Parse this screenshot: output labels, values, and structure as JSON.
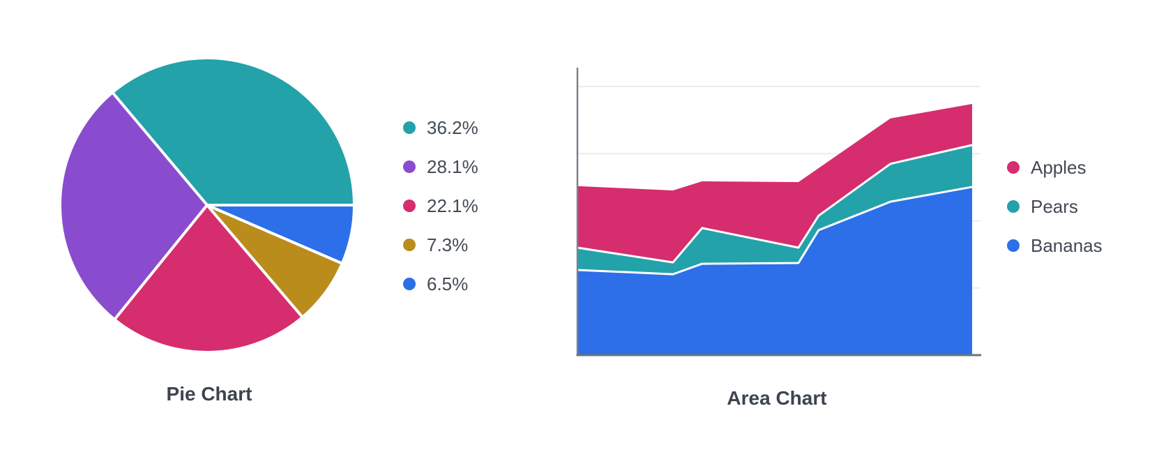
{
  "panel": {
    "background": "#ffffff"
  },
  "chart_data": [
    {
      "type": "pie",
      "title": "Pie Chart",
      "legend_position": "right",
      "start_angle_deg": 0,
      "direction": "counterclockwise",
      "separator_color": "#ffffff",
      "slices": [
        {
          "label": "36.2%",
          "value": 36.2,
          "color": "#23a2aa"
        },
        {
          "label": "28.1%",
          "value": 28.1,
          "color": "#8a4ccf"
        },
        {
          "label": "22.1%",
          "value": 22.1,
          "color": "#d62d6e"
        },
        {
          "label": "7.3%",
          "value": 7.3,
          "color": "#b98c1c"
        },
        {
          "label": "6.5%",
          "value": 6.5,
          "color": "#2d6fe8"
        }
      ]
    },
    {
      "type": "area",
      "title": "Area Chart",
      "stacked": true,
      "legend_position": "right",
      "x": [
        0,
        0.242,
        0.316,
        0.56,
        0.611,
        0.793,
        1
      ],
      "series": [
        {
          "name": "Bananas",
          "color": "#2d6fe8",
          "values": [
            31.7,
            30.1,
            34.0,
            34.3,
            46.5,
            57.1,
            62.6
          ]
        },
        {
          "name": "Pears",
          "color": "#23a2aa",
          "values": [
            8.3,
            4.4,
            13.3,
            5.7,
            5.4,
            14.1,
            15.6
          ]
        },
        {
          "name": "Apples",
          "color": "#d62d6e",
          "values": [
            22.9,
            26.8,
            17.4,
            24.4,
            17.7,
            16.9,
            15.3
          ]
        }
      ],
      "ylim": [
        0,
        107
      ],
      "gridline_values": [
        25,
        50,
        75,
        100
      ],
      "grid": true,
      "axis_tick_labels_visible": false,
      "grid_color": "#ececee",
      "y_axis_color": "#7a828d",
      "x_axis_color": "#6c737e",
      "separator_color": "#ffffff"
    }
  ]
}
